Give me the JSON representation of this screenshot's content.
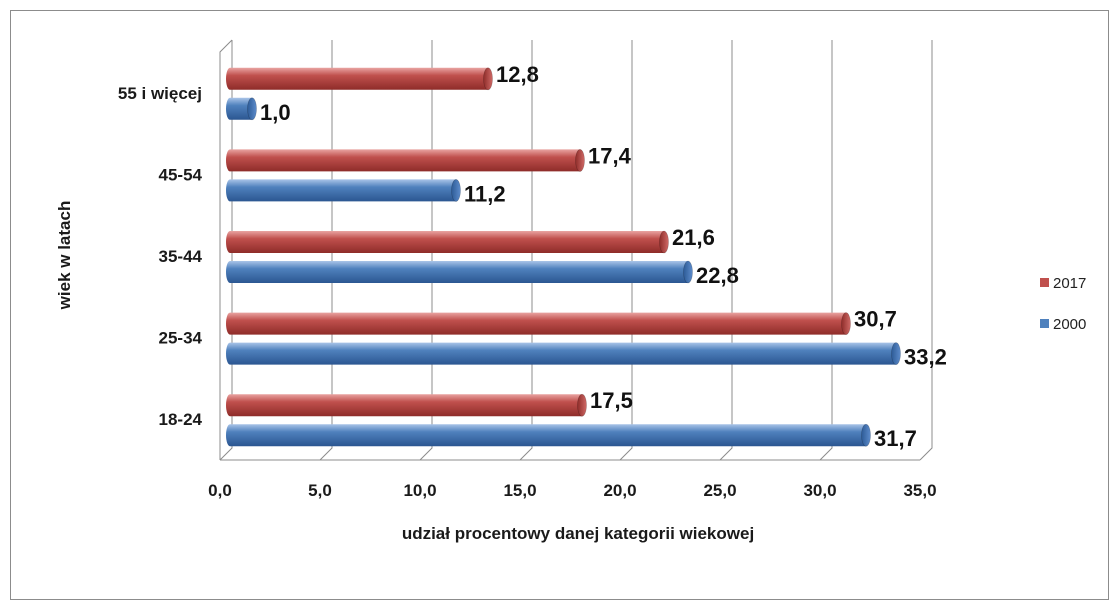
{
  "chart_data": {
    "type": "bar",
    "orientation": "horizontal",
    "categories": [
      "18-24",
      "25-34",
      "35-44",
      "45-54",
      "55 i więcej"
    ],
    "series": [
      {
        "name": "2000",
        "color": "#4a7ebb",
        "values": [
          31.7,
          33.2,
          22.8,
          11.2,
          1.0
        ],
        "labels": [
          "31,7",
          "33,2",
          "22,8",
          "11,2",
          "1,0"
        ]
      },
      {
        "name": "2017",
        "color": "#c0504d",
        "values": [
          17.5,
          30.7,
          21.6,
          17.4,
          12.8
        ],
        "labels": [
          "17,5",
          "30,7",
          "21,6",
          "17,4",
          "12,8"
        ]
      }
    ],
    "xlim": [
      0,
      35
    ],
    "xticks": [
      "0,0",
      "5,0",
      "10,0",
      "15,0",
      "20,0",
      "25,0",
      "30,0",
      "35,0"
    ],
    "xlabel": "udział procentowy danej kategorii wiekowej",
    "ylabel": "wiek w latach",
    "legend": [
      "2017",
      "2000"
    ],
    "legend_position": "right",
    "grid": true
  }
}
